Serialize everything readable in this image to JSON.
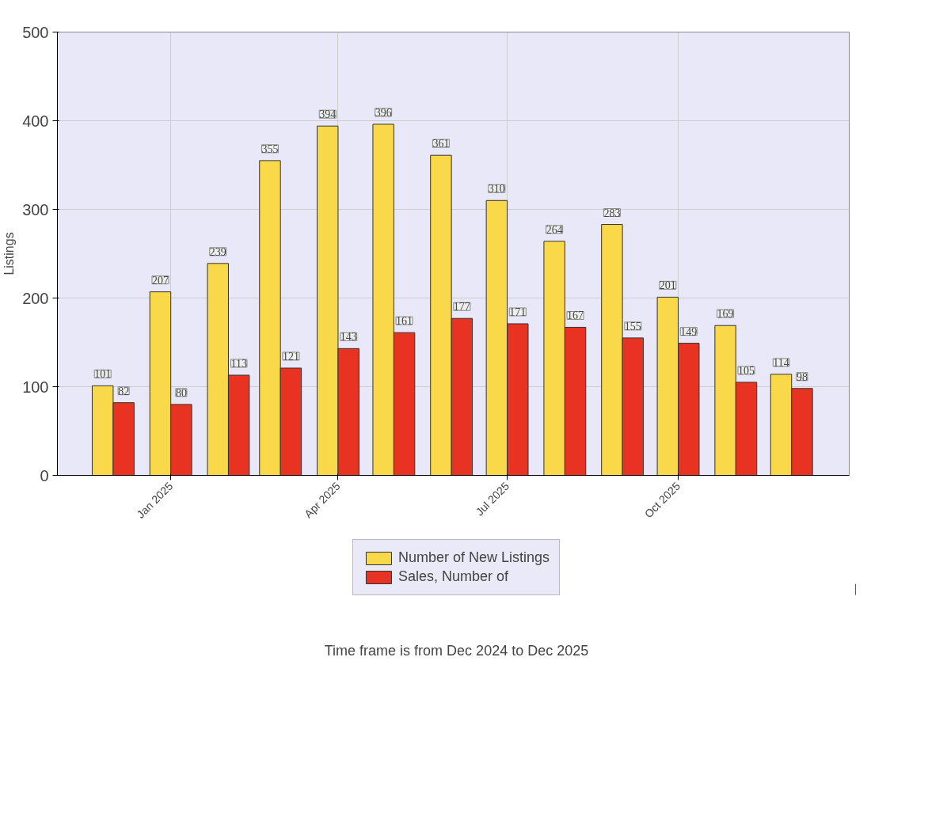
{
  "chart_data": {
    "type": "bar",
    "ylabel": "Listings",
    "x": [
      "2024-12",
      "2025-01",
      "2025-02",
      "2025-03",
      "2025-04",
      "2025-05",
      "2025-06",
      "2025-07",
      "2025-08",
      "2025-09",
      "2025-10",
      "2025-11",
      "2025-12"
    ],
    "series": [
      {
        "name": "Number of New Listings",
        "color": "#f9d84a",
        "values": [
          101,
          207,
          239,
          355,
          394,
          396,
          361,
          310,
          264,
          283,
          201,
          169,
          114
        ]
      },
      {
        "name": "Sales, Number of",
        "color": "#e83222",
        "values": [
          82,
          80,
          113,
          121,
          143,
          161,
          177,
          171,
          167,
          155,
          149,
          105,
          98
        ]
      }
    ],
    "xlim": [
      "2024-11",
      "2026-01"
    ],
    "xticks": [
      {
        "value": "2025-01",
        "label": "Jan 2025"
      },
      {
        "value": "2025-04",
        "label": "Apr 2025"
      },
      {
        "value": "2025-07",
        "label": "Jul 2025"
      },
      {
        "value": "2025-10",
        "label": "Oct 2025"
      }
    ],
    "ylim": [
      0,
      500
    ],
    "yticks": [
      0,
      100,
      200,
      300,
      400,
      500
    ],
    "grid": true,
    "legend": "bottom",
    "data_labels": true,
    "annotations": [
      "Time frame is from Dec 2024 to Dec 2025"
    ]
  }
}
